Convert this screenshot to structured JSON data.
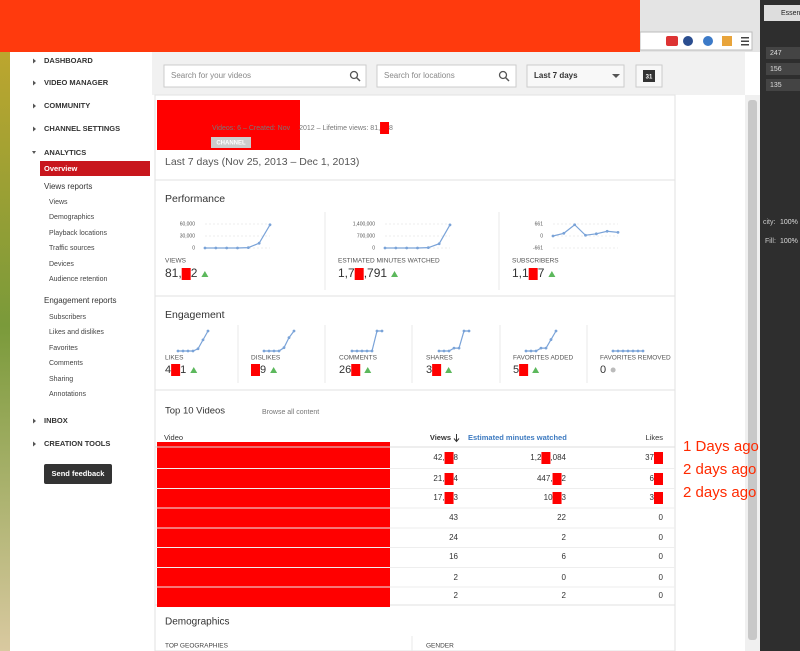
{
  "app_panel": {
    "tab": "Essen",
    "fields": [
      "247",
      "156",
      "135"
    ],
    "opacity_label": "city:",
    "opacity": "100%",
    "fill_label": "Fill:",
    "fill": "100%"
  },
  "nav": [
    {
      "text": "DASHBOARD",
      "kind": "section"
    },
    {
      "text": "VIDEO MANAGER",
      "kind": "section"
    },
    {
      "text": "COMMUNITY",
      "kind": "section"
    },
    {
      "text": "CHANNEL SETTINGS",
      "kind": "section"
    },
    {
      "text": "ANALYTICS",
      "kind": "section",
      "expanded": true
    },
    {
      "text": "Overview",
      "kind": "page",
      "selected": true
    },
    {
      "text": "Views reports",
      "kind": "header"
    },
    {
      "text": "Views",
      "kind": "report"
    },
    {
      "text": "Demographics",
      "kind": "report"
    },
    {
      "text": "Playback locations",
      "kind": "report"
    },
    {
      "text": "Traffic sources",
      "kind": "report"
    },
    {
      "text": "Devices",
      "kind": "report"
    },
    {
      "text": "Audience retention",
      "kind": "report"
    },
    {
      "text": "Engagement reports",
      "kind": "header"
    },
    {
      "text": "Subscribers",
      "kind": "report"
    },
    {
      "text": "Likes and dislikes",
      "kind": "report"
    },
    {
      "text": "Favorites",
      "kind": "report"
    },
    {
      "text": "Comments",
      "kind": "report"
    },
    {
      "text": "Sharing",
      "kind": "report"
    },
    {
      "text": "Annotations",
      "kind": "report"
    },
    {
      "text": "INBOX",
      "kind": "section"
    },
    {
      "text": "CREATION TOOLS",
      "kind": "section"
    }
  ],
  "feedback": "Send feedback",
  "search": {
    "videos": "Search for your videos",
    "locations": "Search for locations",
    "range": "Last 7 days",
    "calendar": "31"
  },
  "channel": {
    "meta": [
      "Videos: 6  –  Created: Nov ",
      null,
      "2012  –  Lifetime views: 81,",
      null,
      "8"
    ],
    "badge": "CHANNEL",
    "period": "Last 7 days (Nov 25, 2013 – Dec 1, 2013)"
  },
  "performance": {
    "title": "Performance",
    "color": "#7aa3d8",
    "charts": [
      {
        "type": "line",
        "label": "VIEWS",
        "total": [
          "81,",
          null,
          "2"
        ],
        "trend": "up",
        "ylim": [
          0,
          60000
        ],
        "yticks": [
          0,
          {
            "value": 30000,
            "label": "30,000"
          },
          {
            "value": 60000,
            "label": "60,000"
          }
        ],
        "values": [
          0,
          0,
          0,
          0,
          1000,
          12000,
          58000
        ]
      },
      {
        "type": "line",
        "label": "ESTIMATED MINUTES WATCHED",
        "total": [
          "1,7",
          null,
          ",791"
        ],
        "trend": "up",
        "ylim": [
          0,
          1400000
        ],
        "yticks": [
          0,
          {
            "value": 700000,
            "label": "700,000"
          },
          {
            "value": 1400000,
            "label": "1,400,000"
          }
        ],
        "values": [
          0,
          0,
          0,
          0,
          20000,
          250000,
          1350000
        ]
      },
      {
        "type": "line",
        "label": "SUBSCRIBERS",
        "total": [
          "1,1",
          null,
          "7"
        ],
        "trend": "up",
        "ylim": [
          -661,
          661
        ],
        "yticks": [
          -661,
          0,
          661
        ],
        "values": [
          0,
          150,
          620,
          40,
          120,
          260,
          200
        ]
      }
    ]
  },
  "engagement": {
    "title": "Engagement",
    "charts": [
      {
        "type": "line",
        "label": "LIKES",
        "total": [
          "4",
          null,
          "1"
        ],
        "trend": "up",
        "values": [
          1,
          1,
          1,
          1,
          2,
          6,
          10
        ]
      },
      {
        "type": "line",
        "label": "DISLIKES",
        "total": [
          null,
          "9"
        ],
        "trend": "up",
        "values": [
          0,
          0,
          0,
          0,
          1,
          4,
          6
        ]
      },
      {
        "type": "line",
        "label": "COMMENTS",
        "total": [
          "26",
          null
        ],
        "trend": "up",
        "values": [
          0,
          0,
          0,
          0,
          0,
          6,
          6
        ]
      },
      {
        "type": "line",
        "label": "SHARES",
        "total": [
          "3",
          null
        ],
        "trend": "up",
        "values": [
          0,
          0,
          0,
          1,
          1,
          7,
          7
        ]
      },
      {
        "type": "line",
        "label": "FAVORITES ADDED",
        "total": [
          "5",
          null
        ],
        "trend": "up",
        "values": [
          0,
          0,
          0,
          1,
          1,
          4,
          7
        ]
      },
      {
        "type": "line",
        "label": "FAVORITES REMOVED",
        "total": [
          "0"
        ],
        "trend": "flat",
        "values": [
          0,
          0,
          0,
          0,
          0,
          0,
          0
        ]
      }
    ]
  },
  "top_videos": {
    "title": "Top 10 Videos",
    "browse": "Browse all content",
    "columns": [
      "Video",
      "Views",
      "Estimated minutes watched",
      "Likes"
    ],
    "rows": [
      [
        [
          "42,",
          null,
          "8"
        ],
        [
          "1,2",
          null,
          ",084"
        ],
        [
          "37",
          null
        ]
      ],
      [
        [
          "21,",
          null,
          "4"
        ],
        [
          "447,",
          null,
          "2"
        ],
        [
          "6",
          null
        ]
      ],
      [
        [
          "17,",
          null,
          "3"
        ],
        [
          "10",
          null,
          "3"
        ],
        [
          "3",
          null
        ]
      ],
      [
        43,
        22,
        0
      ],
      [
        24,
        2,
        0
      ],
      [
        16,
        6,
        0
      ],
      [
        2,
        0,
        0
      ],
      [
        2,
        2,
        0
      ]
    ]
  },
  "notes": [
    "1 Days ago",
    "2 days ago",
    "2 days ago"
  ],
  "demographics": {
    "title": "Demographics",
    "geographies": "TOP GEOGRAPHIES",
    "gender": "GENDER"
  }
}
